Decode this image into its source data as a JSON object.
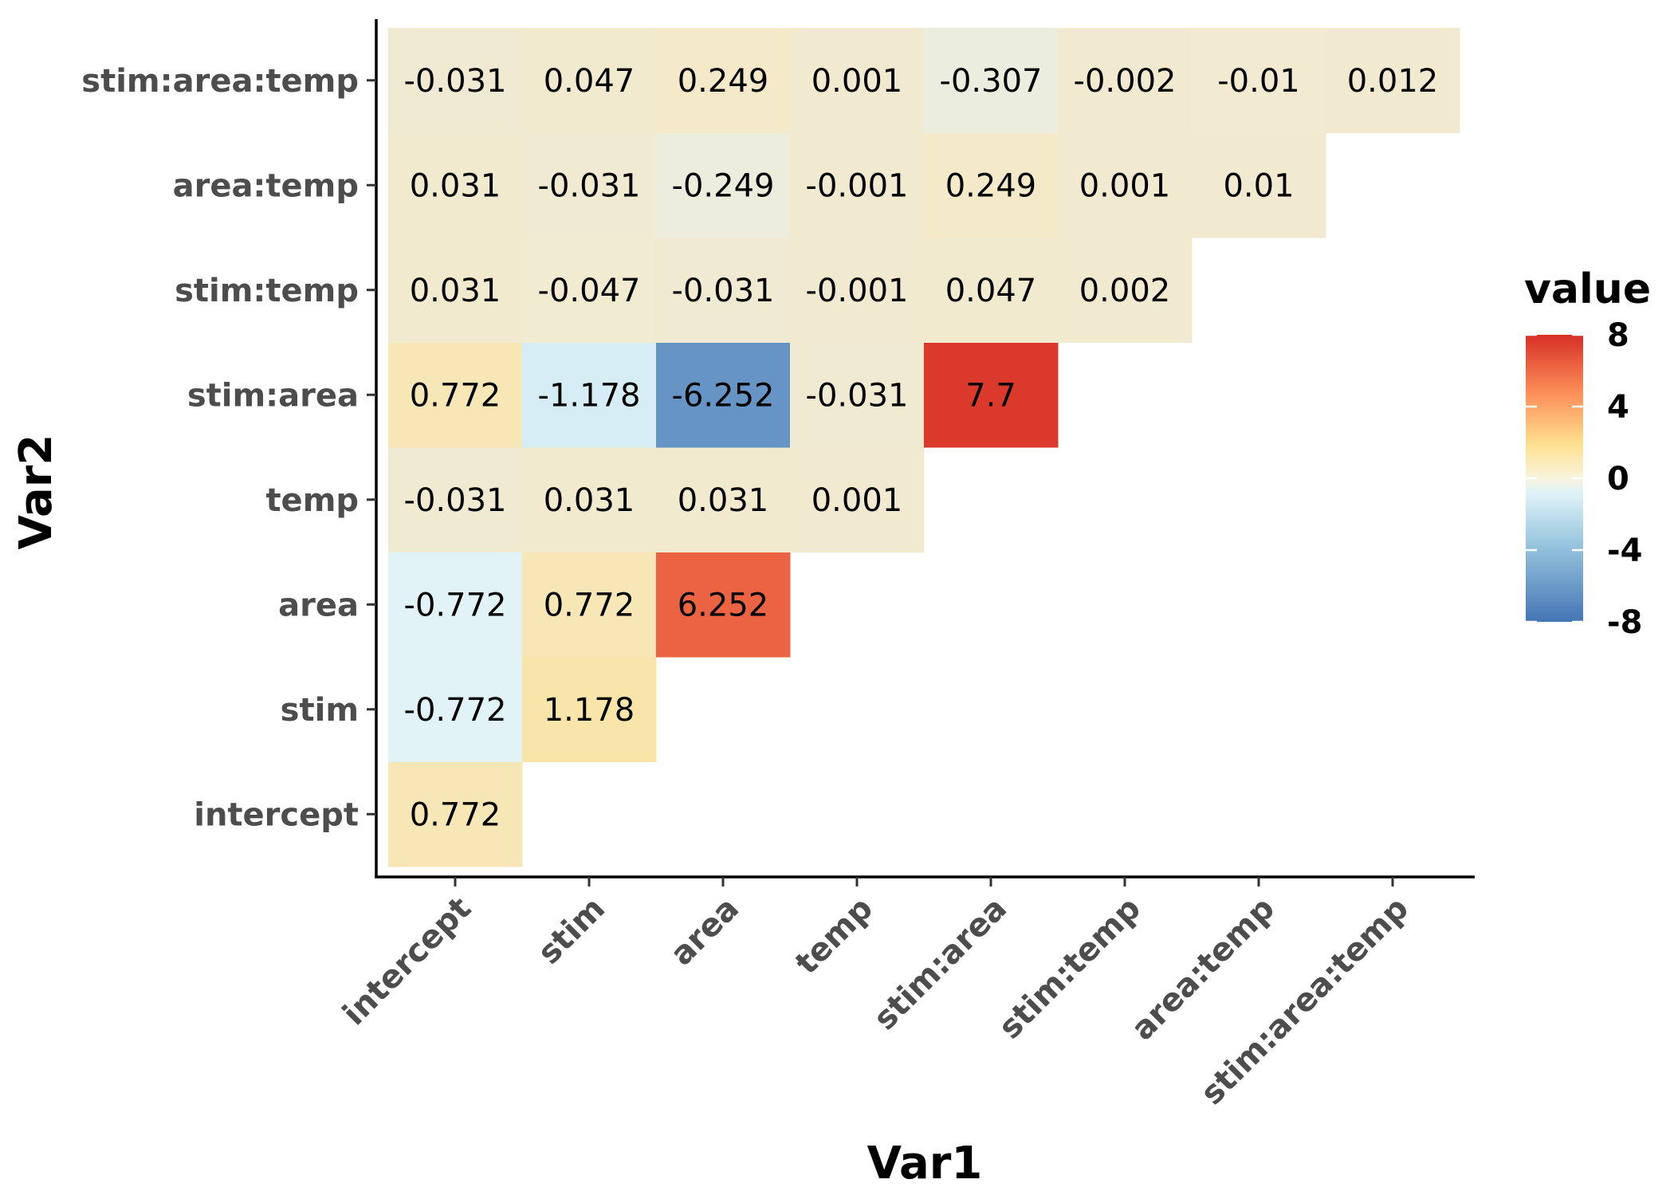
{
  "chart_data": {
    "type": "heatmap",
    "title": "",
    "xlabel": "Var1",
    "ylabel": "Var2",
    "categories": [
      "intercept",
      "stim",
      "area",
      "temp",
      "stim:area",
      "stim:temp",
      "area:temp",
      "stim:area:temp"
    ],
    "cells": [
      {
        "x": "intercept",
        "y": "intercept",
        "value": 0.772,
        "label": "0.772"
      },
      {
        "x": "intercept",
        "y": "stim",
        "value": -0.772,
        "label": "-0.772"
      },
      {
        "x": "intercept",
        "y": "area",
        "value": -0.772,
        "label": "-0.772"
      },
      {
        "x": "intercept",
        "y": "temp",
        "value": -0.031,
        "label": "-0.031"
      },
      {
        "x": "intercept",
        "y": "stim:area",
        "value": 0.772,
        "label": "0.772"
      },
      {
        "x": "intercept",
        "y": "stim:temp",
        "value": 0.031,
        "label": "0.031"
      },
      {
        "x": "intercept",
        "y": "area:temp",
        "value": 0.031,
        "label": "0.031"
      },
      {
        "x": "intercept",
        "y": "stim:area:temp",
        "value": -0.031,
        "label": "-0.031"
      },
      {
        "x": "stim",
        "y": "stim",
        "value": 1.178,
        "label": "1.178"
      },
      {
        "x": "stim",
        "y": "area",
        "value": 0.772,
        "label": "0.772"
      },
      {
        "x": "stim",
        "y": "temp",
        "value": 0.031,
        "label": "0.031"
      },
      {
        "x": "stim",
        "y": "stim:area",
        "value": -1.178,
        "label": "-1.178"
      },
      {
        "x": "stim",
        "y": "stim:temp",
        "value": -0.047,
        "label": "-0.047"
      },
      {
        "x": "stim",
        "y": "area:temp",
        "value": -0.031,
        "label": "-0.031"
      },
      {
        "x": "stim",
        "y": "stim:area:temp",
        "value": 0.047,
        "label": "0.047"
      },
      {
        "x": "area",
        "y": "area",
        "value": 6.252,
        "label": "6.252"
      },
      {
        "x": "area",
        "y": "temp",
        "value": 0.031,
        "label": "0.031"
      },
      {
        "x": "area",
        "y": "stim:area",
        "value": -6.252,
        "label": "-6.252"
      },
      {
        "x": "area",
        "y": "stim:temp",
        "value": -0.031,
        "label": "-0.031"
      },
      {
        "x": "area",
        "y": "area:temp",
        "value": -0.249,
        "label": "-0.249"
      },
      {
        "x": "area",
        "y": "stim:area:temp",
        "value": 0.249,
        "label": "0.249"
      },
      {
        "x": "temp",
        "y": "temp",
        "value": 0.001,
        "label": "0.001"
      },
      {
        "x": "temp",
        "y": "stim:area",
        "value": -0.031,
        "label": "-0.031"
      },
      {
        "x": "temp",
        "y": "stim:temp",
        "value": -0.001,
        "label": "-0.001"
      },
      {
        "x": "temp",
        "y": "area:temp",
        "value": -0.001,
        "label": "-0.001"
      },
      {
        "x": "temp",
        "y": "stim:area:temp",
        "value": 0.001,
        "label": "0.001"
      },
      {
        "x": "stim:area",
        "y": "stim:area",
        "value": 7.7,
        "label": "7.7"
      },
      {
        "x": "stim:area",
        "y": "stim:temp",
        "value": 0.047,
        "label": "0.047"
      },
      {
        "x": "stim:area",
        "y": "area:temp",
        "value": 0.249,
        "label": "0.249"
      },
      {
        "x": "stim:area",
        "y": "stim:area:temp",
        "value": -0.307,
        "label": "-0.307"
      },
      {
        "x": "stim:temp",
        "y": "stim:temp",
        "value": 0.002,
        "label": "0.002"
      },
      {
        "x": "stim:temp",
        "y": "area:temp",
        "value": 0.001,
        "label": "0.001"
      },
      {
        "x": "stim:temp",
        "y": "stim:area:temp",
        "value": -0.002,
        "label": "-0.002"
      },
      {
        "x": "area:temp",
        "y": "area:temp",
        "value": 0.01,
        "label": "0.01"
      },
      {
        "x": "area:temp",
        "y": "stim:area:temp",
        "value": -0.01,
        "label": "-0.01"
      },
      {
        "x": "stim:area:temp",
        "y": "stim:area:temp",
        "value": 0.012,
        "label": "0.012"
      }
    ],
    "legend": {
      "title": "value",
      "position": "right",
      "range": [
        -8,
        8
      ],
      "ticks": [
        8,
        4,
        0,
        -4,
        -8
      ],
      "tick_labels": [
        "8",
        "4",
        "0",
        "-4",
        "-8"
      ],
      "palette": [
        "#4575b4",
        "#91bfdb",
        "#e0f3f8",
        "#ffffbf",
        "#fee090",
        "#fc8d59",
        "#d73027"
      ]
    },
    "grid": false
  }
}
